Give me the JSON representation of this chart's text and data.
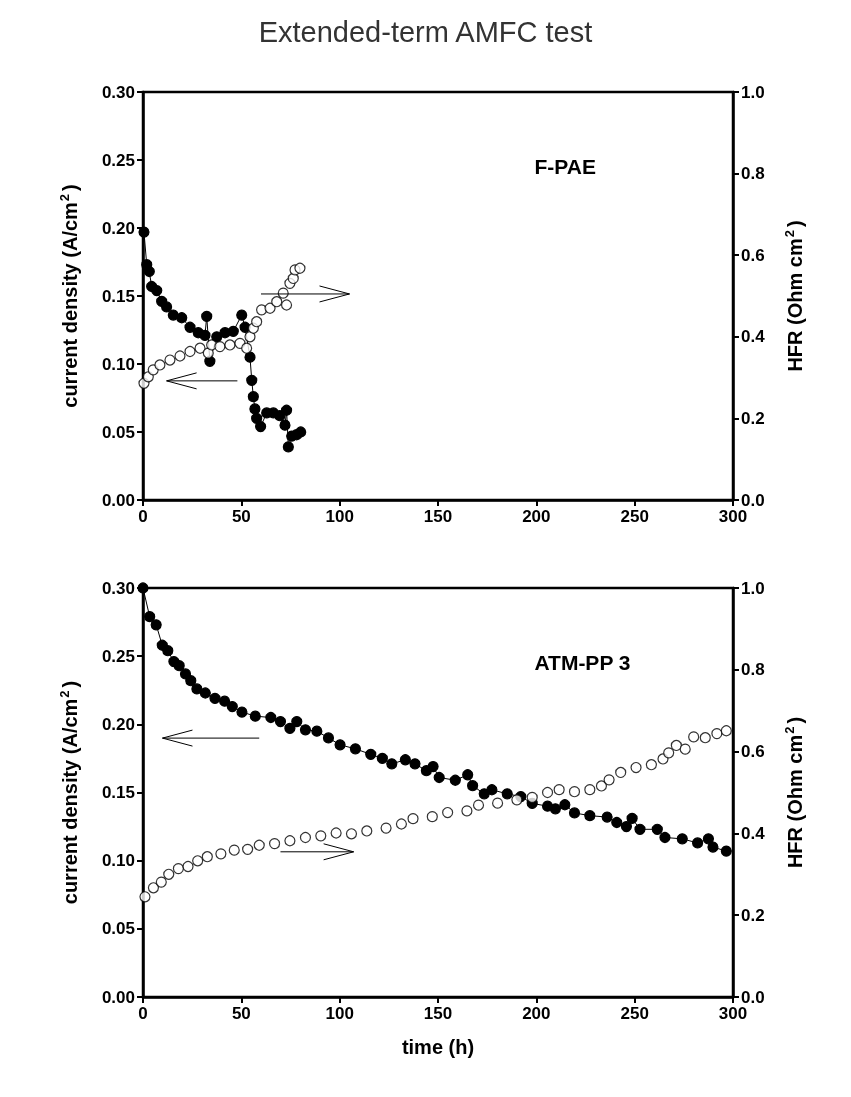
{
  "chart_data": [
    {
      "type": "line",
      "title": "Extended-term AMFC test",
      "ylabel": "current density (A/cm$^{2}$)",
      "y2label": "HFR (Ohm cm$^{2}$)",
      "annotations": [
        "F-PAE"
      ],
      "marker": "circle",
      "line_style": "solid",
      "grid": false,
      "xlim": [
        0,
        300
      ],
      "xticks": [
        0,
        50,
        100,
        150,
        200,
        250,
        300
      ],
      "ylim": [
        0,
        0.3
      ],
      "yticks": [
        {
          "value": 0,
          "label": "0.00"
        },
        {
          "value": 0.05,
          "label": "0.05"
        },
        {
          "value": 0.1,
          "label": "0.10"
        },
        {
          "value": 0.15,
          "label": "0.15"
        },
        {
          "value": 0.2,
          "label": "0.20"
        },
        {
          "value": 0.25,
          "label": "0.25"
        },
        {
          "value": 0.3,
          "label": "0.30"
        }
      ],
      "y2lim": [
        0,
        1
      ],
      "y2ticks": [
        {
          "value": 0,
          "label": "0.0"
        },
        {
          "value": 0.2,
          "label": "0.2"
        },
        {
          "value": 0.4,
          "label": "0.4"
        },
        {
          "value": 0.6,
          "label": "0.6"
        },
        {
          "value": 0.8,
          "label": "0.8"
        },
        {
          "value": 1,
          "label": "1.0"
        }
      ],
      "series": [
        {
          "type": "line",
          "color": "#000000",
          "x": [
            0.5,
            1.9,
            3.2,
            4.4,
            7,
            9.5,
            12,
            15.4,
            19.7,
            23.9,
            28.1,
            31.5,
            32.4,
            34,
            37.5,
            41.7,
            45.9,
            50.2,
            51.9,
            54.4,
            55.3,
            56.1,
            56.9,
            57.8,
            59.8,
            62.9,
            66.3,
            69.6,
            72.2,
            73,
            73.9,
            75.6,
            78.1,
            80.2
          ],
          "values": [
            0.197,
            0.173,
            0.168,
            0.157,
            0.154,
            0.146,
            0.142,
            0.136,
            0.134,
            0.127,
            0.123,
            0.121,
            0.135,
            0.102,
            0.12,
            0.123,
            0.124,
            0.136,
            0.127,
            0.105,
            0.088,
            0.076,
            0.067,
            0.06,
            0.054,
            0.064,
            0.064,
            0.062,
            0.055,
            0.066,
            0.039,
            0.047,
            0.048,
            0.05
          ]
        },
        {
          "type": "scatter",
          "axis": "y2",
          "color": "#ffffff",
          "x": [
            0.5,
            2.7,
            5.2,
            8.6,
            13.7,
            18.8,
            23.9,
            29,
            33.2,
            34.9,
            39.1,
            44.2,
            49.3,
            52.7,
            54.4,
            56.1,
            57.8,
            60.3,
            64.6,
            68,
            71.3,
            73,
            74.7,
            76.4,
            77.3,
            79.8
          ],
          "values": [
            0.286,
            0.302,
            0.319,
            0.331,
            0.343,
            0.353,
            0.364,
            0.372,
            0.36,
            0.38,
            0.376,
            0.38,
            0.384,
            0.372,
            0.4,
            0.421,
            0.437,
            0.466,
            0.47,
            0.486,
            0.507,
            0.478,
            0.531,
            0.543,
            0.564,
            0.568
          ]
        }
      ]
    },
    {
      "type": "line",
      "xlabel": "time (h)",
      "ylabel": "current density (A/cm$^{2}$)",
      "y2label": "HFR (Ohm cm$^{2}$)",
      "annotations": [
        "ATM-PP 3"
      ],
      "marker": "circle",
      "line_style": "solid",
      "grid": false,
      "xlim": [
        0,
        300
      ],
      "xticks": [
        0,
        50,
        100,
        150,
        200,
        250,
        300
      ],
      "ylim": [
        0,
        0.3
      ],
      "yticks": [
        {
          "value": 0,
          "label": "0.00"
        },
        {
          "value": 0.05,
          "label": "0.05"
        },
        {
          "value": 0.1,
          "label": "0.10"
        },
        {
          "value": 0.15,
          "label": "0.15"
        },
        {
          "value": 0.2,
          "label": "0.20"
        },
        {
          "value": 0.25,
          "label": "0.25"
        },
        {
          "value": 0.3,
          "label": "0.30"
        }
      ],
      "y2lim": [
        0,
        1
      ],
      "y2ticks": [
        {
          "value": 0,
          "label": "0.0"
        },
        {
          "value": 0.2,
          "label": "0.2"
        },
        {
          "value": 0.4,
          "label": "0.4"
        },
        {
          "value": 0.6,
          "label": "0.6"
        },
        {
          "value": 0.8,
          "label": "0.8"
        },
        {
          "value": 1,
          "label": "1.0"
        }
      ],
      "series": [
        {
          "type": "line",
          "color": "#000000",
          "x": [
            0,
            3.4,
            6.7,
            9.8,
            12.6,
            15.7,
            18.4,
            21.6,
            24.3,
            27.4,
            31.7,
            36.6,
            41.5,
            45.4,
            50.3,
            57.1,
            65,
            69.9,
            74.7,
            78.2,
            82.6,
            88.4,
            94.3,
            100.2,
            108,
            115.8,
            121.7,
            126.5,
            133.4,
            138.3,
            144.1,
            147.5,
            150.6,
            158.8,
            165.1,
            167.6,
            173.5,
            177.4,
            185.2,
            192.1,
            197.9,
            205.7,
            209.7,
            214.5,
            219.4,
            227.2,
            236,
            240.9,
            245.8,
            248.7,
            252.7,
            261.5,
            265.4,
            274.2,
            282,
            287.5,
            289.8,
            296.6
          ],
          "values": [
            0.3,
            0.279,
            0.273,
            0.258,
            0.254,
            0.246,
            0.243,
            0.237,
            0.232,
            0.226,
            0.223,
            0.219,
            0.217,
            0.213,
            0.209,
            0.206,
            0.205,
            0.202,
            0.197,
            0.202,
            0.196,
            0.195,
            0.19,
            0.185,
            0.182,
            0.178,
            0.175,
            0.171,
            0.174,
            0.171,
            0.166,
            0.169,
            0.161,
            0.159,
            0.163,
            0.155,
            0.149,
            0.152,
            0.149,
            0.147,
            0.142,
            0.14,
            0.138,
            0.141,
            0.135,
            0.133,
            0.132,
            0.128,
            0.125,
            0.131,
            0.123,
            0.123,
            0.117,
            0.116,
            0.113,
            0.116,
            0.11,
            0.107
          ]
        },
        {
          "type": "scatter",
          "axis": "y2",
          "color": "#ffffff",
          "x": [
            1,
            5.3,
            9.3,
            13.1,
            18,
            22.9,
            27.8,
            32.7,
            39.6,
            46.4,
            53.2,
            59.1,
            66.9,
            74.7,
            82.6,
            90.4,
            98.2,
            106,
            113.8,
            123.6,
            131.4,
            137.3,
            147.1,
            154.9,
            164.7,
            170.6,
            180.3,
            190.1,
            197.9,
            205.7,
            211.6,
            219.4,
            227.2,
            233.1,
            237,
            242.9,
            250.7,
            258.5,
            264.4,
            267.3,
            271.2,
            275.7,
            280,
            285.9,
            291.8,
            296.6
          ],
          "values": [
            0.245,
            0.267,
            0.281,
            0.3,
            0.314,
            0.319,
            0.333,
            0.343,
            0.35,
            0.359,
            0.361,
            0.371,
            0.375,
            0.382,
            0.39,
            0.394,
            0.401,
            0.399,
            0.406,
            0.413,
            0.423,
            0.436,
            0.441,
            0.451,
            0.455,
            0.469,
            0.474,
            0.482,
            0.488,
            0.5,
            0.507,
            0.502,
            0.507,
            0.516,
            0.531,
            0.549,
            0.561,
            0.568,
            0.582,
            0.597,
            0.615,
            0.606,
            0.636,
            0.634,
            0.644,
            0.651
          ]
        }
      ]
    }
  ]
}
